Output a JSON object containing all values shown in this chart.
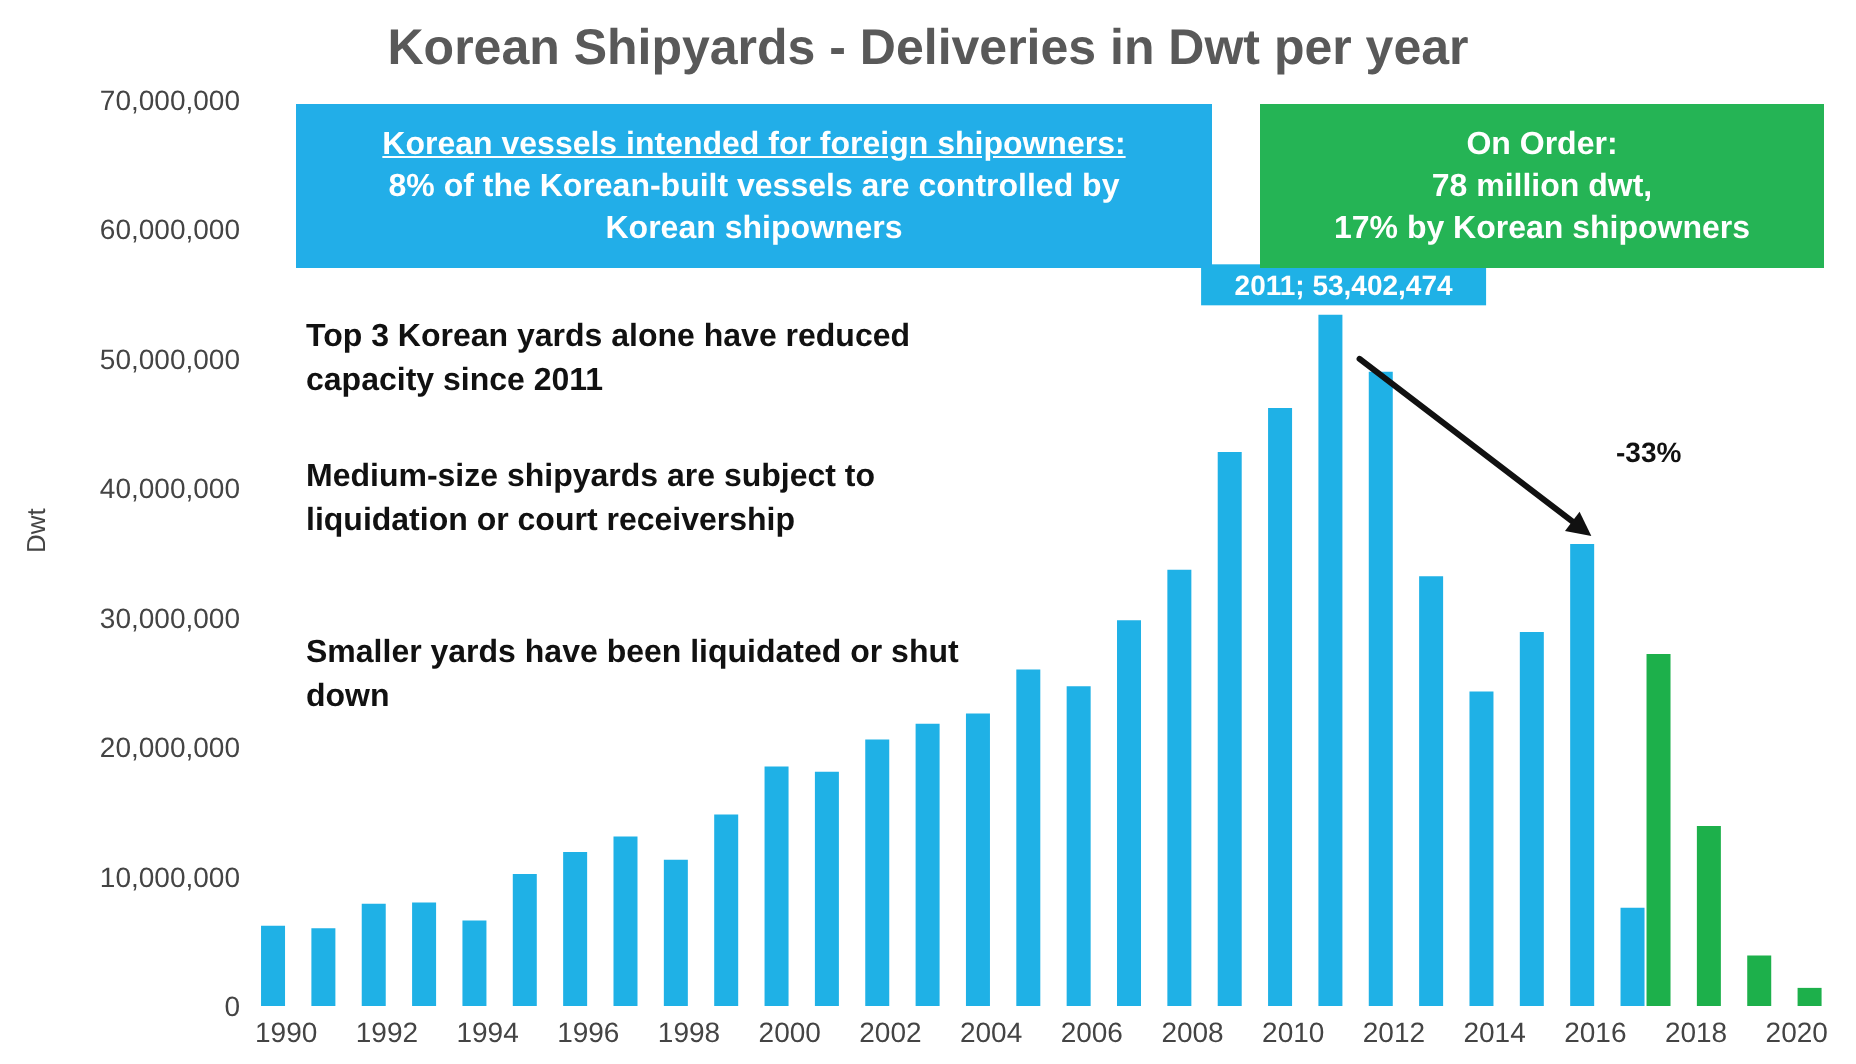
{
  "chart_data": {
    "type": "bar",
    "title": "Korean Shipyards - Deliveries in Dwt per year",
    "ylabel": "Dwt",
    "series": [
      {
        "color": "#1fb1e6",
        "x": [
          1990,
          1991,
          1992,
          1993,
          1994,
          1995,
          1996,
          1997,
          1998,
          1999,
          2000,
          2001,
          2002,
          2003,
          2004,
          2005,
          2006,
          2007,
          2008,
          2009,
          2010,
          2011,
          2012,
          2013,
          2014,
          2015,
          2016,
          2017
        ],
        "values": [
          6200000,
          6000000,
          7900000,
          8000000,
          6600000,
          10200000,
          11900000,
          13100000,
          11300000,
          14800000,
          18500000,
          18100000,
          20600000,
          21800000,
          22600000,
          26000000,
          24700000,
          29800000,
          33700000,
          42800000,
          46200000,
          53402474,
          49000000,
          33200000,
          24300000,
          28900000,
          35700000,
          7600000
        ]
      },
      {
        "color": "#1db04b",
        "x": [
          2017,
          2018,
          2019,
          2020
        ],
        "values": [
          27200000,
          13900000,
          3900000,
          1400000
        ]
      }
    ],
    "xlim": [
      1989.4,
      2020.7
    ],
    "xticks": [
      1990,
      1992,
      1994,
      1996,
      1998,
      2000,
      2002,
      2004,
      2006,
      2008,
      2010,
      2012,
      2014,
      2016,
      2018,
      2020
    ],
    "ylim": [
      0,
      70000000
    ],
    "yticks": [
      0,
      {
        "value": 10000000,
        "label": "10,000,000"
      },
      {
        "value": 20000000,
        "label": "20,000,000"
      },
      {
        "value": 30000000,
        "label": "30,000,000"
      },
      {
        "value": 40000000,
        "label": "40,000,000"
      },
      {
        "value": 50000000,
        "label": "50,000,000"
      },
      {
        "value": 60000000,
        "label": "60,000,000"
      },
      {
        "value": 70000000,
        "label": "70,000,000"
      }
    ],
    "grid": false,
    "legend": false,
    "annotations": [
      "Korean vessels intended for foreign shipowners:",
      "8% of the Korean-built vessels are controlled by Korean shipowners",
      "On Order:",
      "78 million dwt,",
      "17% by Korean shipowners",
      "Top 3 Korean yards alone have reduced capacity since 2011",
      "Medium-size shipyards are subject to liquidation or court receivership",
      "Smaller yards have been liquidated or shut down",
      {
        "text": "2011; 53,402,474",
        "x": 2011,
        "y": 53402474
      },
      "-33%"
    ]
  }
}
